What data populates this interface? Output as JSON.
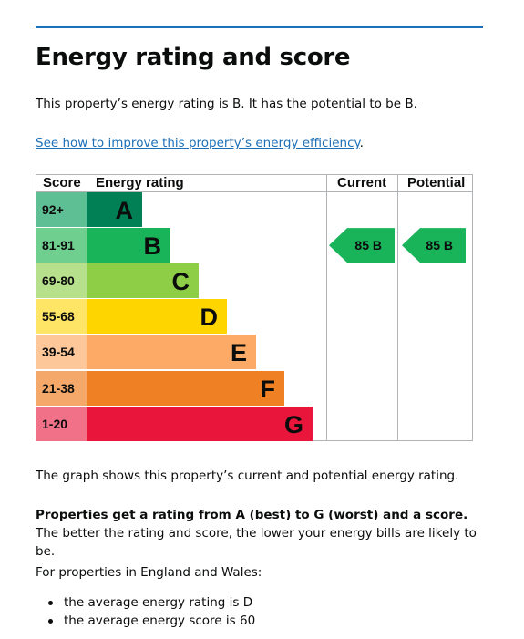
{
  "heading": "Energy rating and score",
  "intro": "This property’s energy rating is B. It has the potential to be B.",
  "improve_link": "See how to improve this property’s energy efficiency",
  "improve_link_suffix": ".",
  "chart_data": {
    "type": "table",
    "headers": {
      "score": "Score",
      "rating": "Energy rating",
      "current": "Current",
      "potential": "Potential"
    },
    "bands": [
      {
        "score": "92+",
        "letter": "A",
        "color": "#008054",
        "score_bg": "#5fbf94"
      },
      {
        "score": "81-91",
        "letter": "B",
        "color": "#19b459",
        "score_bg": "#6fcf8e"
      },
      {
        "score": "69-80",
        "letter": "C",
        "color": "#8dce46",
        "score_bg": "#b6e08b"
      },
      {
        "score": "55-68",
        "letter": "D",
        "color": "#ffd500",
        "score_bg": "#ffe566"
      },
      {
        "score": "39-54",
        "letter": "E",
        "color": "#fcaa65",
        "score_bg": "#fdc799"
      },
      {
        "score": "21-38",
        "letter": "F",
        "color": "#ef8023",
        "score_bg": "#f4a96a"
      },
      {
        "score": "1-20",
        "letter": "G",
        "color": "#e9153b",
        "score_bg": "#f07188"
      }
    ],
    "current": {
      "score": 85,
      "band": "B",
      "label": "85 B"
    },
    "potential": {
      "score": 85,
      "band": "B",
      "label": "85 B"
    }
  },
  "graph_caption": "The graph shows this property’s current and potential energy rating.",
  "rating_bold": "Properties get a rating from A (best) to G (worst) and a score.",
  "rating_rest": " The better the rating and score, the lower your energy bills are likely to be.",
  "england_wales": "For properties in England and Wales:",
  "bullets": [
    "the average energy rating is D",
    "the average energy score is 60"
  ]
}
